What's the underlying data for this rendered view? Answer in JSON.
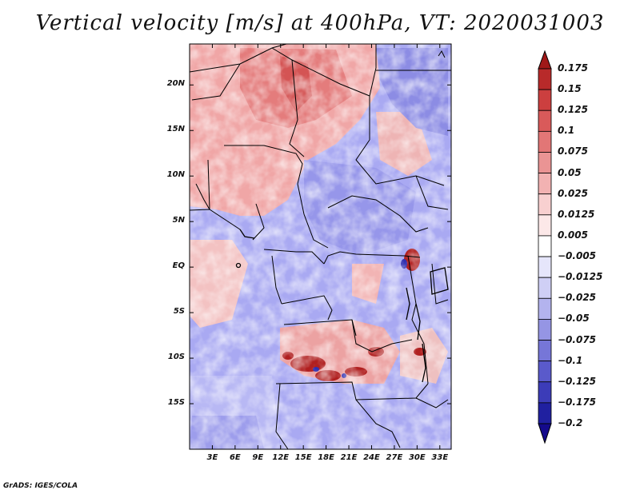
{
  "title": "Vertical velocity [m/s] at 400hPa, VT: 2020031003",
  "credit": "GrADS: IGES/COLA",
  "map": {
    "lat_labels": [
      "20N",
      "15N",
      "10N",
      "5N",
      "EQ",
      "5S",
      "10S",
      "15S"
    ],
    "lat_values": [
      20,
      15,
      10,
      5,
      0,
      -5,
      -10,
      -15
    ],
    "lon_labels": [
      "3E",
      "6E",
      "9E",
      "12E",
      "15E",
      "18E",
      "21E",
      "24E",
      "27E",
      "30E",
      "33E"
    ],
    "lon_values": [
      3,
      6,
      9,
      12,
      15,
      18,
      21,
      24,
      27,
      30,
      33
    ],
    "lat_range": [
      -20,
      24.5
    ],
    "lon_range": [
      0,
      34.5
    ]
  },
  "colorbar": {
    "labels": [
      "0.175",
      "0.15",
      "0.125",
      "0.1",
      "0.075",
      "0.05",
      "0.025",
      "0.0125",
      "0.005",
      "−0.005",
      "−0.0125",
      "−0.025",
      "−0.05",
      "−0.075",
      "−0.1",
      "−0.125",
      "−0.175",
      "−0.2"
    ],
    "colors": [
      "#a01818",
      "#b82a2a",
      "#cc3f3f",
      "#d95a5a",
      "#e27676",
      "#ea9494",
      "#f2b2b2",
      "#f8d0d0",
      "#fce8e8",
      "#ffffff",
      "#e6e6fb",
      "#cfcff5",
      "#b3b3ee",
      "#9595e4",
      "#7676d8",
      "#5a5acb",
      "#3c3cb8",
      "#2020a0",
      "#140a8c"
    ]
  }
}
